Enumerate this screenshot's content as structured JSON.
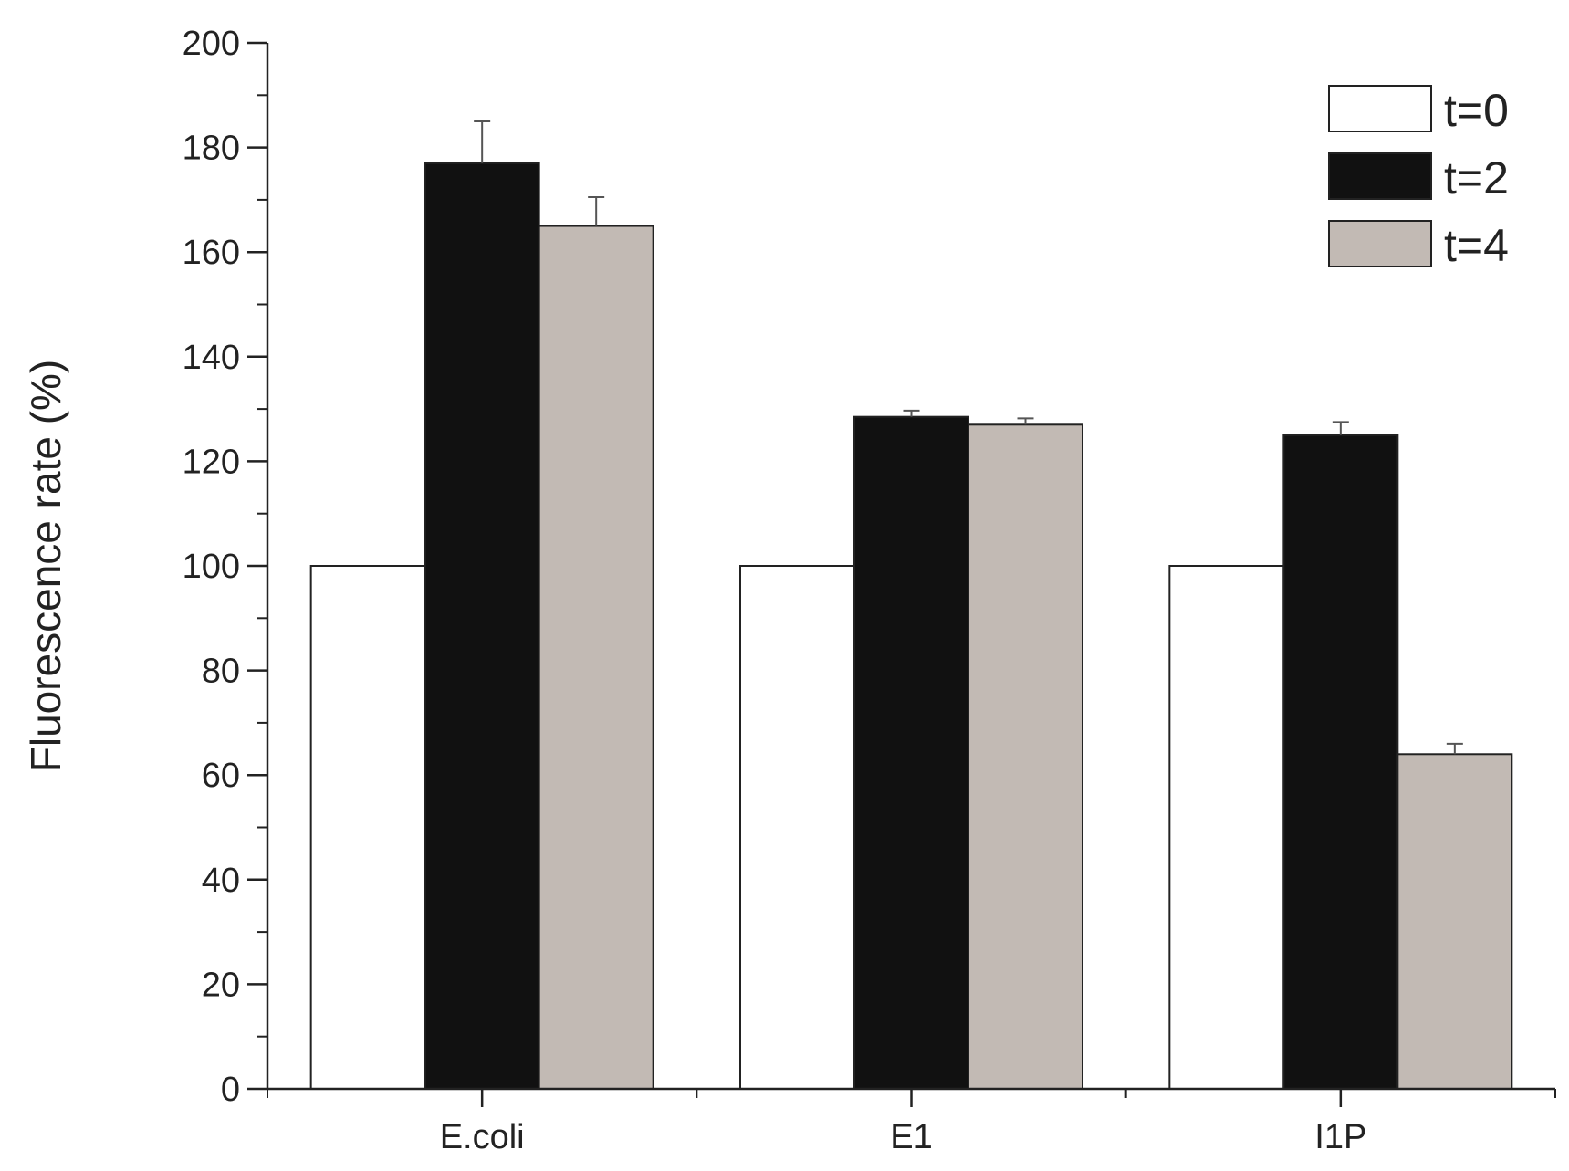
{
  "chart_data": {
    "type": "bar",
    "title": "",
    "xlabel": "",
    "ylabel": "Fluorescence rate (%)",
    "ylim": [
      0,
      200
    ],
    "yticks": [
      "0",
      "20",
      "40",
      "60",
      "80",
      "100",
      "120",
      "140",
      "160",
      "180",
      "200"
    ],
    "categories": [
      "E.coli",
      "E1",
      "I1P"
    ],
    "series": [
      {
        "name": "t=0",
        "color": "#ffffff",
        "values": [
          100,
          100,
          100
        ],
        "errors": [
          0,
          0,
          0
        ]
      },
      {
        "name": "t=2",
        "color": "#111111",
        "values": [
          177,
          128.5,
          125
        ],
        "errors": [
          8,
          1.2,
          2.5
        ]
      },
      {
        "name": "t=4",
        "color": "#c2bab4",
        "values": [
          165,
          127,
          64
        ],
        "errors": [
          5.5,
          1.2,
          2
        ]
      }
    ],
    "legend_position": "top-right",
    "grid": false
  }
}
